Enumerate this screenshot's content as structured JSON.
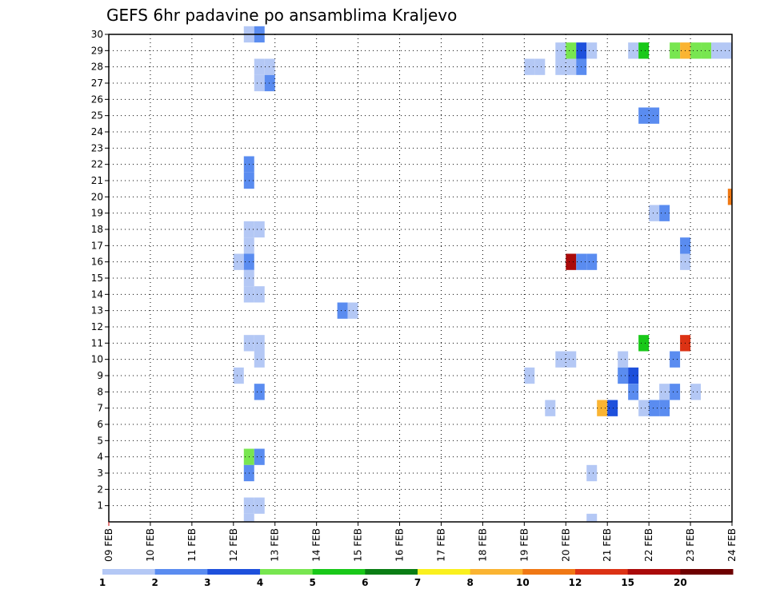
{
  "chart_data": {
    "type": "heatmap",
    "title": "GEFS 6hr padavine po ansamblima Kraljevo",
    "x_tick_labels": [
      "09 FEB",
      "10 FEB",
      "11 FEB",
      "12 FEB",
      "13 FEB",
      "14 FEB",
      "15 FEB",
      "16 FEB",
      "17 FEB",
      "18 FEB",
      "19 FEB",
      "20 FEB",
      "21 FEB",
      "22 FEB",
      "23 FEB",
      "24 FEB"
    ],
    "x_range_days": [
      0,
      15
    ],
    "cell_width_days": 0.25,
    "y_tick_labels": [
      "1",
      "2",
      "3",
      "4",
      "5",
      "6",
      "7",
      "8",
      "9",
      "10",
      "11",
      "12",
      "13",
      "14",
      "15",
      "16",
      "17",
      "18",
      "19",
      "20",
      "21",
      "22",
      "23",
      "24",
      "25",
      "26",
      "27",
      "28",
      "29",
      "30"
    ],
    "y_range": [
      0,
      30
    ],
    "grid": "dotted",
    "legend": {
      "placement": "bottom",
      "colors": [
        "#b4c8f5",
        "#5a8cf0",
        "#1e50dc",
        "#78e650",
        "#19c819",
        "#0a7d14",
        "#faf01e",
        "#fab432",
        "#f07814",
        "#dc3214",
        "#aa0a0a",
        "#6e0000"
      ],
      "labels": [
        "1",
        "2",
        "3",
        "4",
        "5",
        "6",
        "7",
        "8",
        "10",
        "12",
        "15",
        "20"
      ]
    },
    "palette": {
      "L1": "#b4c8f5",
      "L2": "#5a8cf0",
      "L3": "#1e50dc",
      "L4": "#78e650",
      "L5": "#19c819",
      "L6": "#0a7d14",
      "L7": "#faf01e",
      "L8": "#fab432",
      "L10": "#f07814",
      "L12": "#dc3214",
      "L15": "#aa0a0a",
      "L20": "#6e0000"
    },
    "cells": [
      {
        "member": 30,
        "t": 3.25,
        "level": "L1"
      },
      {
        "member": 30,
        "t": 3.5,
        "level": "L2"
      },
      {
        "member": 29,
        "t": 10.75,
        "level": "L1"
      },
      {
        "member": 29,
        "t": 11.0,
        "level": "L4"
      },
      {
        "member": 29,
        "t": 11.25,
        "level": "L3"
      },
      {
        "member": 29,
        "t": 11.5,
        "level": "L1"
      },
      {
        "member": 29,
        "t": 12.5,
        "level": "L1"
      },
      {
        "member": 29,
        "t": 12.75,
        "level": "L5"
      },
      {
        "member": 29,
        "t": 13.5,
        "level": "L4"
      },
      {
        "member": 29,
        "t": 13.75,
        "level": "L8"
      },
      {
        "member": 29,
        "t": 14.0,
        "level": "L4"
      },
      {
        "member": 29,
        "t": 14.25,
        "level": "L4"
      },
      {
        "member": 29,
        "t": 14.5,
        "level": "L1"
      },
      {
        "member": 29,
        "t": 14.75,
        "level": "L1"
      },
      {
        "member": 28,
        "t": 3.5,
        "level": "L1"
      },
      {
        "member": 28,
        "t": 3.75,
        "level": "L1"
      },
      {
        "member": 28,
        "t": 10.0,
        "level": "L1"
      },
      {
        "member": 28,
        "t": 10.25,
        "level": "L1"
      },
      {
        "member": 28,
        "t": 10.75,
        "level": "L1"
      },
      {
        "member": 28,
        "t": 11.0,
        "level": "L1"
      },
      {
        "member": 28,
        "t": 11.25,
        "level": "L2"
      },
      {
        "member": 27,
        "t": 3.5,
        "level": "L1"
      },
      {
        "member": 27,
        "t": 3.75,
        "level": "L2"
      },
      {
        "member": 25,
        "t": 12.75,
        "level": "L2"
      },
      {
        "member": 25,
        "t": 13.0,
        "level": "L2"
      },
      {
        "member": 22,
        "t": 3.25,
        "level": "L2"
      },
      {
        "member": 21,
        "t": 3.25,
        "level": "L2"
      },
      {
        "member": 20,
        "t": 14.9,
        "level": "L10"
      },
      {
        "member": 19,
        "t": 13.0,
        "level": "L1"
      },
      {
        "member": 19,
        "t": 13.25,
        "level": "L2"
      },
      {
        "member": 18,
        "t": 3.25,
        "level": "L1"
      },
      {
        "member": 18,
        "t": 3.5,
        "level": "L1"
      },
      {
        "member": 17,
        "t": 3.25,
        "level": "L1"
      },
      {
        "member": 17,
        "t": 13.75,
        "level": "L2"
      },
      {
        "member": 16,
        "t": 3.0,
        "level": "L1"
      },
      {
        "member": 16,
        "t": 3.25,
        "level": "L2"
      },
      {
        "member": 16,
        "t": 11.0,
        "level": "L15"
      },
      {
        "member": 16,
        "t": 11.25,
        "level": "L2"
      },
      {
        "member": 16,
        "t": 11.5,
        "level": "L2"
      },
      {
        "member": 16,
        "t": 13.75,
        "level": "L1"
      },
      {
        "member": 15,
        "t": 3.25,
        "level": "L1"
      },
      {
        "member": 14,
        "t": 3.25,
        "level": "L1"
      },
      {
        "member": 14,
        "t": 3.5,
        "level": "L1"
      },
      {
        "member": 13,
        "t": 5.5,
        "level": "L2"
      },
      {
        "member": 13,
        "t": 5.75,
        "level": "L1"
      },
      {
        "member": 11,
        "t": 3.25,
        "level": "L1"
      },
      {
        "member": 11,
        "t": 3.5,
        "level": "L1"
      },
      {
        "member": 11,
        "t": 12.75,
        "level": "L5"
      },
      {
        "member": 11,
        "t": 13.75,
        "level": "L12"
      },
      {
        "member": 10,
        "t": 3.5,
        "level": "L1"
      },
      {
        "member": 10,
        "t": 10.75,
        "level": "L1"
      },
      {
        "member": 10,
        "t": 11.0,
        "level": "L1"
      },
      {
        "member": 10,
        "t": 12.25,
        "level": "L1"
      },
      {
        "member": 10,
        "t": 13.5,
        "level": "L2"
      },
      {
        "member": 9,
        "t": 3.0,
        "level": "L1"
      },
      {
        "member": 9,
        "t": 10.0,
        "level": "L1"
      },
      {
        "member": 9,
        "t": 12.25,
        "level": "L2"
      },
      {
        "member": 9,
        "t": 12.5,
        "level": "L3"
      },
      {
        "member": 8,
        "t": 3.5,
        "level": "L2"
      },
      {
        "member": 8,
        "t": 12.5,
        "level": "L2"
      },
      {
        "member": 8,
        "t": 13.25,
        "level": "L1"
      },
      {
        "member": 8,
        "t": 13.5,
        "level": "L2"
      },
      {
        "member": 8,
        "t": 14.0,
        "level": "L1"
      },
      {
        "member": 7,
        "t": 10.5,
        "level": "L1"
      },
      {
        "member": 7,
        "t": 11.75,
        "level": "L8"
      },
      {
        "member": 7,
        "t": 12.0,
        "level": "L3"
      },
      {
        "member": 7,
        "t": 12.75,
        "level": "L1"
      },
      {
        "member": 7,
        "t": 13.0,
        "level": "L2"
      },
      {
        "member": 7,
        "t": 13.25,
        "level": "L2"
      },
      {
        "member": 4,
        "t": 3.25,
        "level": "L4"
      },
      {
        "member": 4,
        "t": 3.5,
        "level": "L2"
      },
      {
        "member": 3,
        "t": 3.25,
        "level": "L2"
      },
      {
        "member": 3,
        "t": 11.5,
        "level": "L1"
      },
      {
        "member": 1,
        "t": 3.25,
        "level": "L1"
      },
      {
        "member": 1,
        "t": 3.5,
        "level": "L1"
      },
      {
        "member": 0,
        "t": 3.25,
        "level": "L1"
      },
      {
        "member": 0,
        "t": 11.5,
        "level": "L1"
      }
    ]
  }
}
